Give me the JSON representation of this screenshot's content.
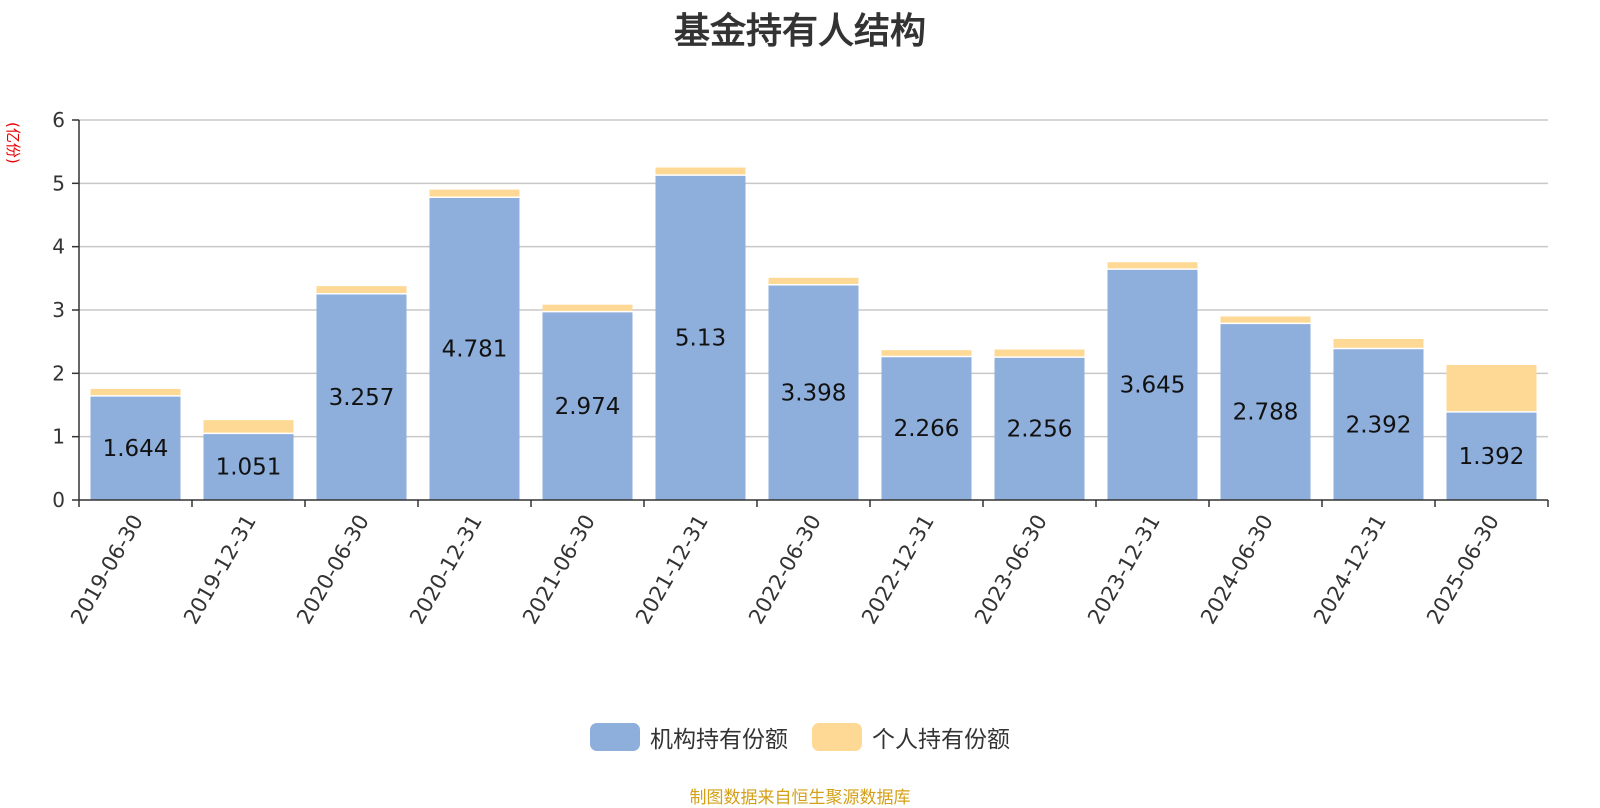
{
  "chart_data": {
    "type": "bar",
    "stacked": true,
    "title": "基金持有人结构",
    "ylabel": "(亿份)",
    "ylim": [
      0,
      6
    ],
    "yticks": [
      0,
      1,
      2,
      3,
      4,
      5,
      6
    ],
    "grid": true,
    "legend_position": "bottom",
    "categories": [
      "2019-06-30",
      "2019-12-31",
      "2020-06-30",
      "2020-12-31",
      "2021-06-30",
      "2021-12-31",
      "2022-06-30",
      "2022-12-31",
      "2023-06-30",
      "2023-12-31",
      "2024-06-30",
      "2024-12-31",
      "2025-06-30"
    ],
    "series": [
      {
        "name": "机构持有份额",
        "color": "#8eaedb",
        "values": [
          1.644,
          1.051,
          3.257,
          4.781,
          2.974,
          5.13,
          3.398,
          2.266,
          2.256,
          3.645,
          2.788,
          2.392,
          1.392
        ],
        "labels": [
          "1.644",
          "1.051",
          "3.257",
          "4.781",
          "2.974",
          "5.13",
          "3.398",
          "2.266",
          "2.256",
          "3.645",
          "2.788",
          "2.392",
          "1.392"
        ]
      },
      {
        "name": "个人持有份额",
        "color": "#fdd995",
        "values": [
          0.11,
          0.21,
          0.12,
          0.12,
          0.11,
          0.12,
          0.11,
          0.1,
          0.12,
          0.11,
          0.11,
          0.15,
          0.74
        ]
      }
    ]
  },
  "source_note": "制图数据来自恒生聚源数据库"
}
